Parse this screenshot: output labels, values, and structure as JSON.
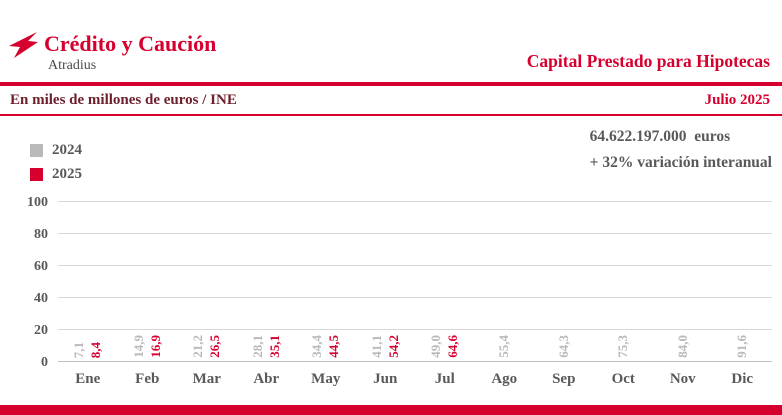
{
  "brand": {
    "name": "Crédito y Caución",
    "subname": "Atradius"
  },
  "header": {
    "title": "Capital Prestado para Hipotecas"
  },
  "subheader": {
    "left": "En miles de millones de euros / INE",
    "right": "Julio 2025"
  },
  "stats": {
    "amount": "64.622.197.000  euros",
    "variation": "+ 32% variación interanual"
  },
  "legend": [
    {
      "label": "2024",
      "color": "#b9b9b9"
    },
    {
      "label": "2025",
      "color": "#d6002f"
    }
  ],
  "colors": {
    "accent": "#d6002f",
    "bar_2024": "#b9b9b9",
    "bar_2025": "#d6002f",
    "text_gray": "#58595b"
  },
  "chart_data": {
    "type": "bar",
    "title": "Capital Prestado para Hipotecas",
    "subtitle": "En miles de millones de euros / INE",
    "categories": [
      "Ene",
      "Feb",
      "Mar",
      "Abr",
      "May",
      "Jun",
      "Jul",
      "Ago",
      "Sep",
      "Oct",
      "Nov",
      "Dic"
    ],
    "series": [
      {
        "name": "2024",
        "color": "#b9b9b9",
        "values": [
          7.1,
          14.9,
          21.2,
          28.1,
          34.4,
          41.1,
          49.0,
          55.4,
          64.3,
          75.3,
          84.0,
          91.6
        ]
      },
      {
        "name": "2025",
        "color": "#d6002f",
        "values": [
          8.4,
          16.9,
          26.5,
          35.1,
          44.5,
          54.2,
          64.6,
          null,
          null,
          null,
          null,
          null
        ]
      }
    ],
    "xlabel": "",
    "ylabel": "",
    "ylim": [
      0,
      100
    ],
    "yticks": [
      0,
      20,
      40,
      60,
      80,
      100
    ],
    "grid": true,
    "legend_position": "top-left",
    "value_label_style": "rotated-90-comma-decimal"
  }
}
